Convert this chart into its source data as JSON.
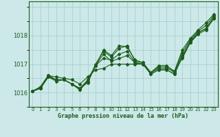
{
  "xlabel": "Graphe pression niveau de la mer (hPa)",
  "background_color": "#cce8e8",
  "grid_color": "#aacfcf",
  "line_color": "#1a5c1a",
  "text_color": "#1a5c1a",
  "ylim": [
    1015.5,
    1019.2
  ],
  "xlim": [
    -0.5,
    23.5
  ],
  "yticks": [
    1016,
    1017,
    1018
  ],
  "xticks": [
    0,
    1,
    2,
    3,
    4,
    5,
    6,
    7,
    8,
    9,
    10,
    11,
    12,
    13,
    14,
    15,
    16,
    17,
    18,
    19,
    20,
    21,
    22,
    23
  ],
  "series": [
    [
      1016.05,
      1016.15,
      1016.6,
      1016.55,
      1016.5,
      1016.45,
      1016.3,
      1016.55,
      1016.8,
      1016.85,
      1017.0,
      1017.0,
      1017.0,
      1017.0,
      1017.0,
      1016.7,
      1016.85,
      1016.85,
      1016.75,
      1017.2,
      1017.75,
      1018.05,
      1018.2,
      1018.6
    ],
    [
      1016.05,
      1016.2,
      1016.6,
      1016.45,
      1016.45,
      1016.3,
      1016.15,
      1016.35,
      1016.95,
      1017.2,
      1017.15,
      1017.35,
      1017.45,
      1017.05,
      1017.0,
      1016.65,
      1016.8,
      1016.8,
      1016.65,
      1017.25,
      1017.75,
      1018.1,
      1018.25,
      1018.6
    ],
    [
      1016.05,
      1016.2,
      1016.6,
      1016.45,
      1016.45,
      1016.3,
      1016.15,
      1016.45,
      1016.95,
      1017.35,
      1017.1,
      1017.2,
      1017.3,
      1017.05,
      1017.0,
      1016.65,
      1016.8,
      1016.8,
      1016.65,
      1017.3,
      1017.8,
      1018.1,
      1018.25,
      1018.65
    ],
    [
      1016.05,
      1016.15,
      1016.55,
      1016.45,
      1016.45,
      1016.3,
      1016.1,
      1016.4,
      1017.0,
      1017.45,
      1017.25,
      1017.55,
      1017.65,
      1017.1,
      1017.05,
      1016.7,
      1016.9,
      1016.9,
      1016.7,
      1017.4,
      1017.85,
      1018.15,
      1018.35,
      1018.7
    ]
  ],
  "series_single": [
    1016.05,
    1016.15,
    1016.55,
    1016.4,
    1016.45,
    1016.3,
    1016.1,
    1016.4,
    1016.95,
    1017.5,
    1017.3,
    1017.65,
    1017.6,
    1017.15,
    1017.05,
    1016.7,
    1016.95,
    1016.95,
    1016.75,
    1017.5,
    1017.9,
    1018.2,
    1018.45,
    1018.75
  ],
  "marker": "D",
  "markersize": 2.0,
  "linewidth": 0.8
}
